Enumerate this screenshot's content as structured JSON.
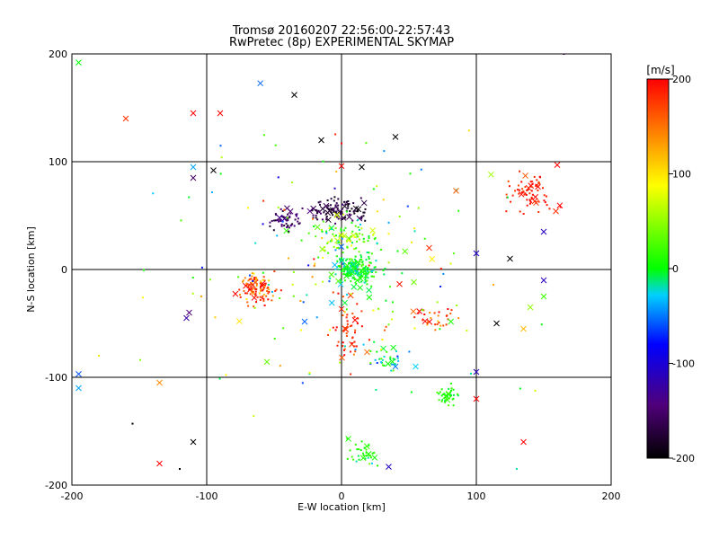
{
  "chart_data": {
    "type": "scatter",
    "title": "Tromsø 20160207 22:56:00-22:57:43",
    "subtitle": "RwPretec (8p) EXPERIMENTAL SKYMAP",
    "xlabel": "E-W location [km]",
    "ylabel": "N-S location [km]",
    "xlim": [
      -200,
      200
    ],
    "ylim": [
      -200,
      200
    ],
    "xticks": [
      "-200",
      "-100",
      "0",
      "100",
      "200"
    ],
    "yticks": [
      "-200",
      "-100",
      "0",
      "100",
      "200"
    ],
    "grid": true,
    "colorbar": {
      "label": "[m/s]",
      "range": [
        -200,
        200
      ],
      "ticks": [
        "200",
        "100",
        "0",
        "-100",
        "-200"
      ],
      "colormap": "black-purple-blue-cyan-green-yellow-red",
      "placement": "right"
    },
    "marker_types": [
      "dot",
      "x"
    ],
    "clusters": [
      {
        "x": 10,
        "y": 0,
        "spread_x": 14,
        "spread_y": 12,
        "count": 200,
        "v": 0,
        "v_spread": 30
      },
      {
        "x": -40,
        "y": 45,
        "spread_x": 12,
        "spread_y": 10,
        "count": 55,
        "v": -160,
        "v_spread": 30
      },
      {
        "x": -5,
        "y": 55,
        "spread_x": 18,
        "spread_y": 10,
        "count": 110,
        "v": -170,
        "v_spread": 30
      },
      {
        "x": -62,
        "y": -18,
        "spread_x": 12,
        "spread_y": 14,
        "count": 110,
        "v": 170,
        "v_spread": 60
      },
      {
        "x": 140,
        "y": 70,
        "spread_x": 18,
        "spread_y": 14,
        "count": 75,
        "v": 190,
        "v_spread": 20
      },
      {
        "x": 5,
        "y": 30,
        "spread_x": 22,
        "spread_y": 14,
        "count": 90,
        "v": 30,
        "v_spread": 70
      },
      {
        "x": 5,
        "y": -55,
        "spread_x": 10,
        "spread_y": 35,
        "count": 55,
        "v": 180,
        "v_spread": 30
      },
      {
        "x": 80,
        "y": -118,
        "spread_x": 8,
        "spread_y": 8,
        "count": 35,
        "v": 10,
        "v_spread": 20
      },
      {
        "x": 15,
        "y": -170,
        "spread_x": 10,
        "spread_y": 12,
        "count": 35,
        "v": 10,
        "v_spread": 30
      },
      {
        "x": 35,
        "y": -85,
        "spread_x": 12,
        "spread_y": 10,
        "count": 30,
        "v": -10,
        "v_spread": 60
      },
      {
        "x": 70,
        "y": -45,
        "spread_x": 15,
        "spread_y": 15,
        "count": 30,
        "v": 170,
        "v_spread": 50
      },
      {
        "x": 0,
        "y": 0,
        "spread_x": 110,
        "spread_y": 110,
        "count": 170,
        "v": 40,
        "v_spread": 130
      }
    ],
    "labelled_points": [
      {
        "x": -35,
        "y": 162,
        "v": -200,
        "marker": "x"
      },
      {
        "x": 40,
        "y": 123,
        "v": -200,
        "marker": "x"
      },
      {
        "x": -15,
        "y": 120,
        "v": -200,
        "marker": "x"
      },
      {
        "x": 15,
        "y": 95,
        "v": -200,
        "marker": "x"
      },
      {
        "x": -95,
        "y": 92,
        "v": -200,
        "marker": "x"
      },
      {
        "x": 125,
        "y": 10,
        "v": -200,
        "marker": "x"
      },
      {
        "x": 115,
        "y": -50,
        "v": -200,
        "marker": "x"
      },
      {
        "x": -110,
        "y": -160,
        "v": -200,
        "marker": "x"
      },
      {
        "x": -120,
        "y": -185,
        "v": -200,
        "marker": "dot"
      },
      {
        "x": -155,
        "y": -143,
        "v": -200,
        "marker": "dot"
      },
      {
        "x": -160,
        "y": 140,
        "v": 180,
        "marker": "x"
      },
      {
        "x": -110,
        "y": 145,
        "v": 200,
        "marker": "x"
      },
      {
        "x": -90,
        "y": 145,
        "v": 200,
        "marker": "x"
      },
      {
        "x": 0,
        "y": 96,
        "v": 200,
        "marker": "x"
      },
      {
        "x": 0,
        "y": 117,
        "v": 200,
        "marker": "dot"
      },
      {
        "x": 160,
        "y": 97,
        "v": 200,
        "marker": "x"
      },
      {
        "x": 100,
        "y": -120,
        "v": 200,
        "marker": "x"
      },
      {
        "x": 135,
        "y": -160,
        "v": 200,
        "marker": "x"
      },
      {
        "x": -135,
        "y": -180,
        "v": 200,
        "marker": "x"
      },
      {
        "x": -195,
        "y": 192,
        "v": 0,
        "marker": "x"
      },
      {
        "x": -195,
        "y": -97,
        "v": -60,
        "marker": "x"
      },
      {
        "x": -195,
        "y": -110,
        "v": -40,
        "marker": "x"
      },
      {
        "x": -180,
        "y": -80,
        "v": 100,
        "marker": "dot"
      },
      {
        "x": -135,
        "y": -105,
        "v": 140,
        "marker": "x"
      },
      {
        "x": -115,
        "y": -45,
        "v": -120,
        "marker": "x"
      },
      {
        "x": -113,
        "y": -40,
        "v": -140,
        "marker": "x"
      },
      {
        "x": -110,
        "y": 85,
        "v": -150,
        "marker": "x"
      },
      {
        "x": -110,
        "y": 95,
        "v": -40,
        "marker": "x"
      },
      {
        "x": 130,
        "y": -185,
        "v": -20,
        "marker": "dot"
      },
      {
        "x": 165,
        "y": 200,
        "v": -140,
        "marker": "dot"
      },
      {
        "x": 100,
        "y": -95,
        "v": -110,
        "marker": "x"
      },
      {
        "x": 150,
        "y": 35,
        "v": -110,
        "marker": "x"
      },
      {
        "x": 150,
        "y": -10,
        "v": -110,
        "marker": "x"
      },
      {
        "x": 100,
        "y": 15,
        "v": -100,
        "marker": "x"
      },
      {
        "x": 150,
        "y": -25,
        "v": 20,
        "marker": "x"
      },
      {
        "x": 135,
        "y": -55,
        "v": 120,
        "marker": "x"
      },
      {
        "x": 140,
        "y": -35,
        "v": 50,
        "marker": "x"
      },
      {
        "x": 85,
        "y": 73,
        "v": 160,
        "marker": "x"
      },
      {
        "x": 65,
        "y": 20,
        "v": 180,
        "marker": "x"
      },
      {
        "x": 55,
        "y": -90,
        "v": -30,
        "marker": "x"
      },
      {
        "x": 40,
        "y": -90,
        "v": -50,
        "marker": "x"
      },
      {
        "x": 35,
        "y": -183,
        "v": -110,
        "marker": "x"
      }
    ]
  }
}
